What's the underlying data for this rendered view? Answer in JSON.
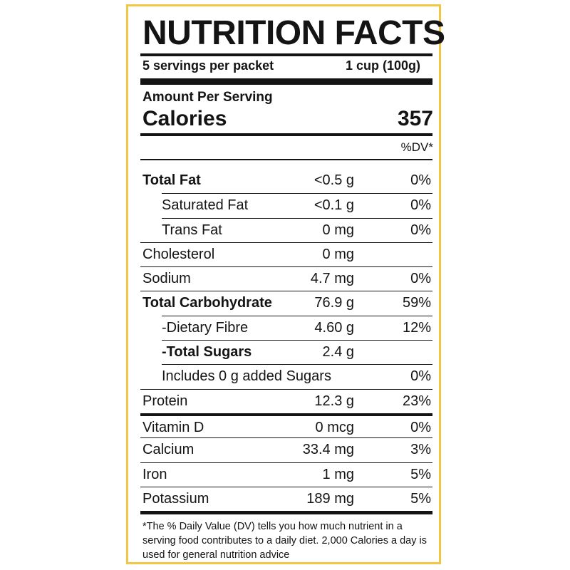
{
  "colors": {
    "border": "#f2c744",
    "text": "#141414"
  },
  "label": {
    "title": "NUTRITION FACTS",
    "servings": "5 servings per packet",
    "serving_size": "1 cup (100g)",
    "amount_per_serving": "Amount Per Serving",
    "calories_label": "Calories",
    "calories_value": "357",
    "dv_header": "%DV*",
    "rows": [
      {
        "label": "Total Fat",
        "amount": "<0.5 g",
        "dv": "0%"
      },
      {
        "label": "Saturated Fat",
        "amount": "<0.1 g",
        "dv": "0%"
      },
      {
        "label": "Trans Fat",
        "amount": "0 mg",
        "dv": "0%"
      },
      {
        "label": "Cholesterol",
        "amount": "0 mg",
        "dv": ""
      },
      {
        "label": "Sodium",
        "amount": "4.7 mg",
        "dv": "0%"
      },
      {
        "label": "Total Carbohydrate",
        "amount": "76.9 g",
        "dv": "59%"
      },
      {
        "label": "-Dietary Fibre",
        "amount": "4.60 g",
        "dv": "12%"
      },
      {
        "label": "-Total Sugars",
        "amount": "2.4 g",
        "dv": ""
      },
      {
        "label": "Includes 0 g added Sugars",
        "amount": "",
        "dv": "0%"
      },
      {
        "label": "Protein",
        "amount": "12.3 g",
        "dv": "23%"
      },
      {
        "label": "Vitamin D",
        "amount": "0 mcg",
        "dv": "0%"
      },
      {
        "label": "Calcium",
        "amount": "33.4 mg",
        "dv": "3%"
      },
      {
        "label": "Iron",
        "amount": "1 mg",
        "dv": "5%"
      },
      {
        "label": "Potassium",
        "amount": "189 mg",
        "dv": "5%"
      }
    ],
    "footnote": "*The % Daily Value (DV) tells you how much nutrient in a serving food contributes to a daily diet. 2,000 Calories a day is used for general nutrition advice"
  }
}
